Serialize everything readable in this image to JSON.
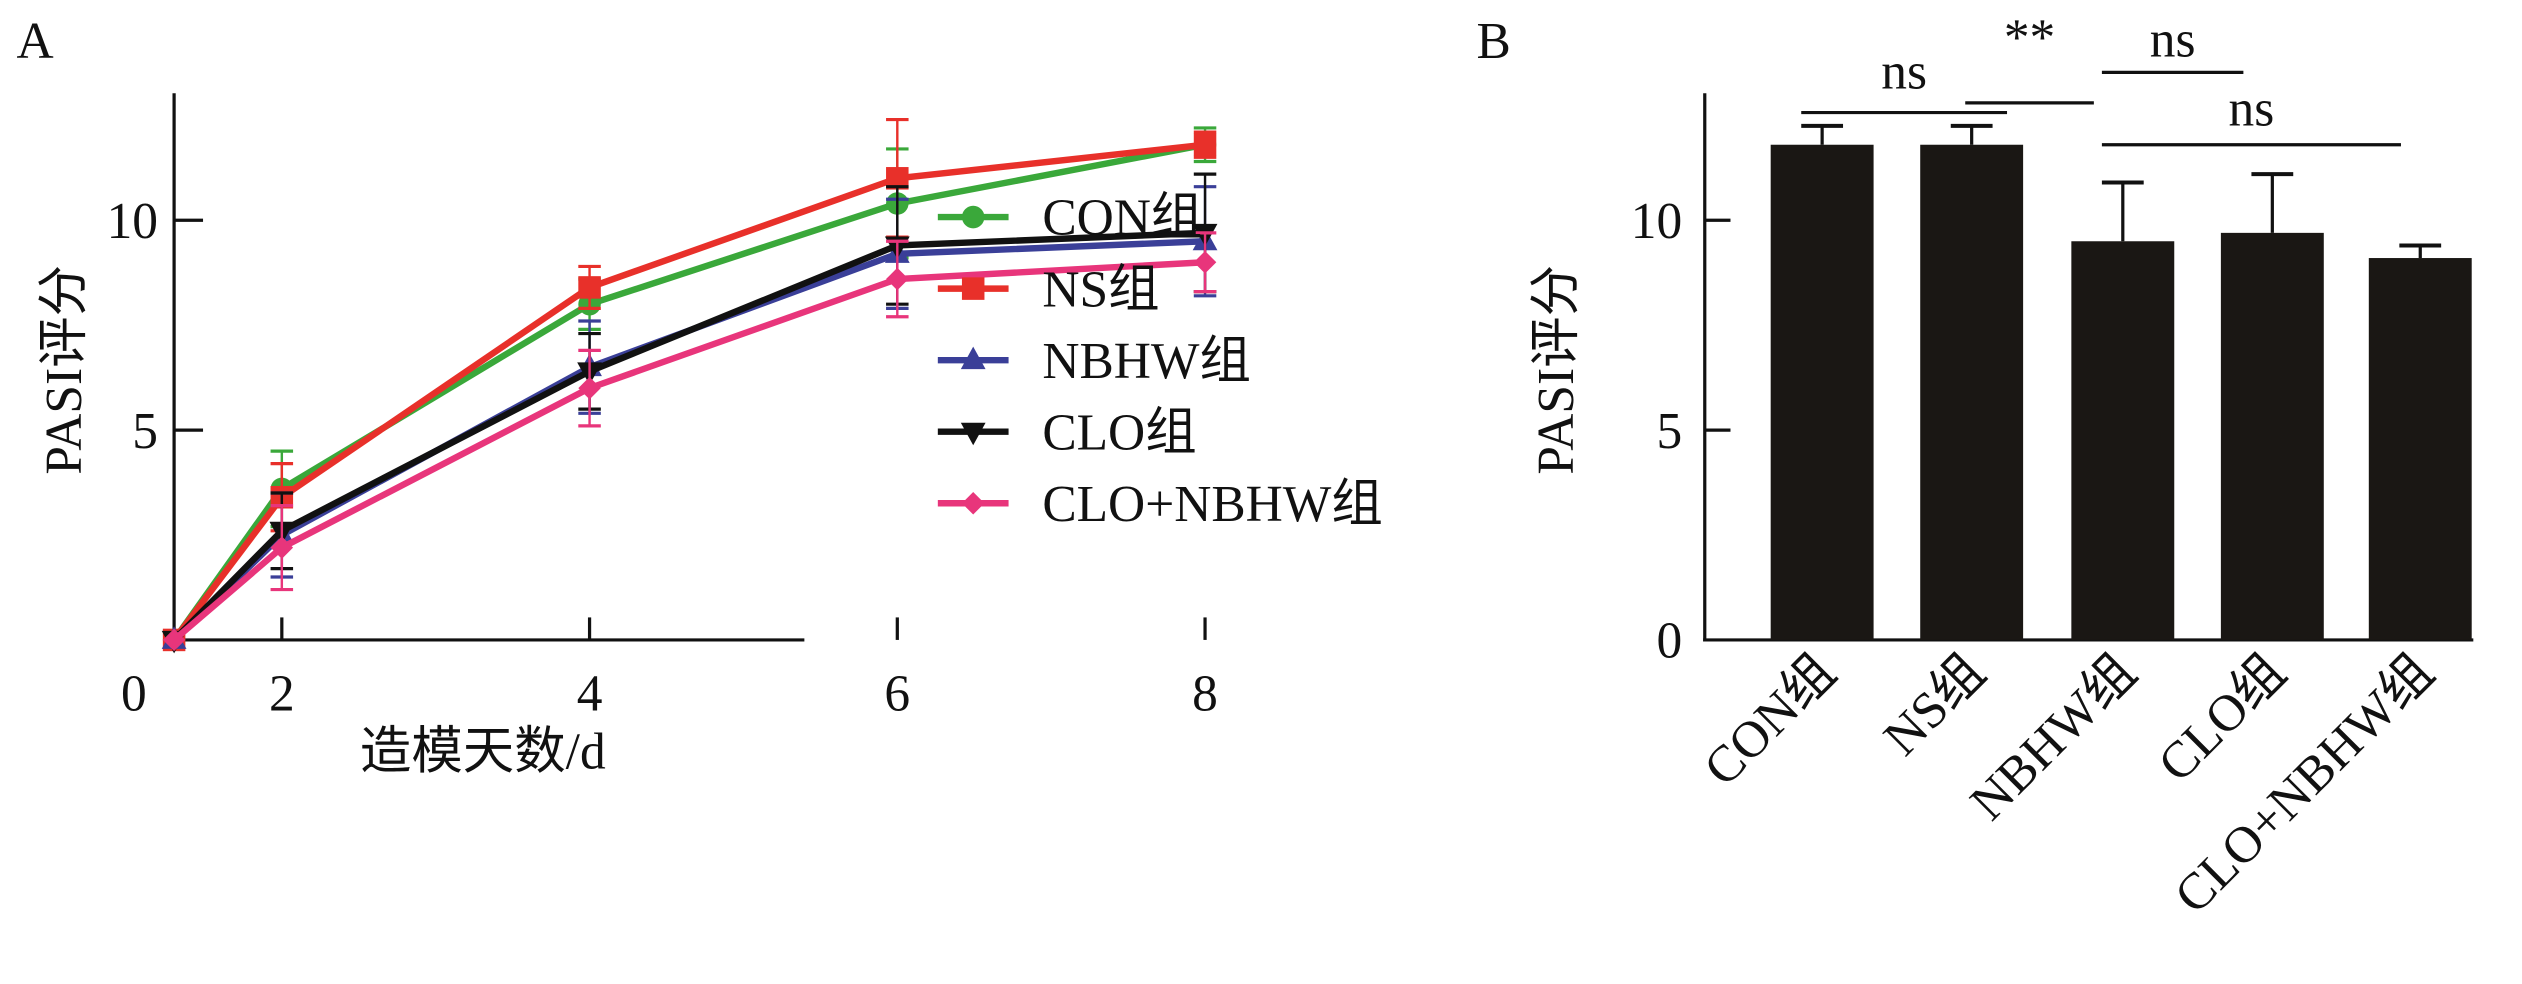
{
  "chart_data": [
    {
      "panel": "A",
      "type": "line",
      "xlabel": "造模天数/d",
      "ylabel": "PASI评分",
      "xticks": [
        0,
        2,
        4,
        6,
        8
      ],
      "yticks": [
        5,
        10
      ],
      "ylim": [
        0,
        13
      ],
      "x": [
        0,
        2,
        4,
        6,
        8
      ],
      "legend_position": "right",
      "series": [
        {
          "name": "CON组",
          "color": "#3aa83a",
          "marker": "circle",
          "values": [
            0,
            3.6,
            8.0,
            10.4,
            11.8
          ],
          "errors": [
            0,
            0.9,
            0.6,
            1.3,
            0.4
          ]
        },
        {
          "name": "NS组",
          "color": "#e8302a",
          "marker": "square",
          "values": [
            0,
            3.4,
            8.4,
            11.0,
            11.8
          ],
          "errors": [
            0,
            0.8,
            0.5,
            1.4,
            0.3
          ]
        },
        {
          "name": "NBHW组",
          "color": "#3a3f98",
          "marker": "triangle-up",
          "values": [
            0,
            2.5,
            6.5,
            9.2,
            9.5
          ],
          "errors": [
            0,
            1.0,
            1.1,
            1.3,
            1.3
          ]
        },
        {
          "name": "CLO组",
          "color": "#111111",
          "marker": "triangle-down",
          "values": [
            0,
            2.6,
            6.4,
            9.4,
            9.7
          ],
          "errors": [
            0,
            0.9,
            0.9,
            1.4,
            1.4
          ]
        },
        {
          "name": "CLO+NBHW组",
          "color": "#e8357b",
          "marker": "diamond",
          "values": [
            0,
            2.2,
            6.0,
            8.6,
            9.0
          ],
          "errors": [
            0,
            1.0,
            0.9,
            0.9,
            0.7
          ]
        }
      ]
    },
    {
      "panel": "B",
      "type": "bar",
      "ylabel": "PASI评分",
      "yticks": [
        0,
        5,
        10
      ],
      "ylim": [
        0,
        13
      ],
      "categories": [
        "CON组",
        "NS组",
        "NBHW组",
        "CLO组",
        "CLO+NBHW组"
      ],
      "values": [
        11.8,
        11.8,
        9.5,
        9.7,
        9.1
      ],
      "errors": [
        0.45,
        0.45,
        1.4,
        1.4,
        0.3
      ],
      "bar_color": "#1a1714",
      "significance": [
        {
          "from": 0,
          "to": 1,
          "label": "ns"
        },
        {
          "from": 1,
          "to": 2,
          "label": "**"
        },
        {
          "from": 2,
          "to": 3,
          "label": "ns"
        },
        {
          "from": 2,
          "to": 4,
          "label": "ns"
        }
      ]
    }
  ]
}
